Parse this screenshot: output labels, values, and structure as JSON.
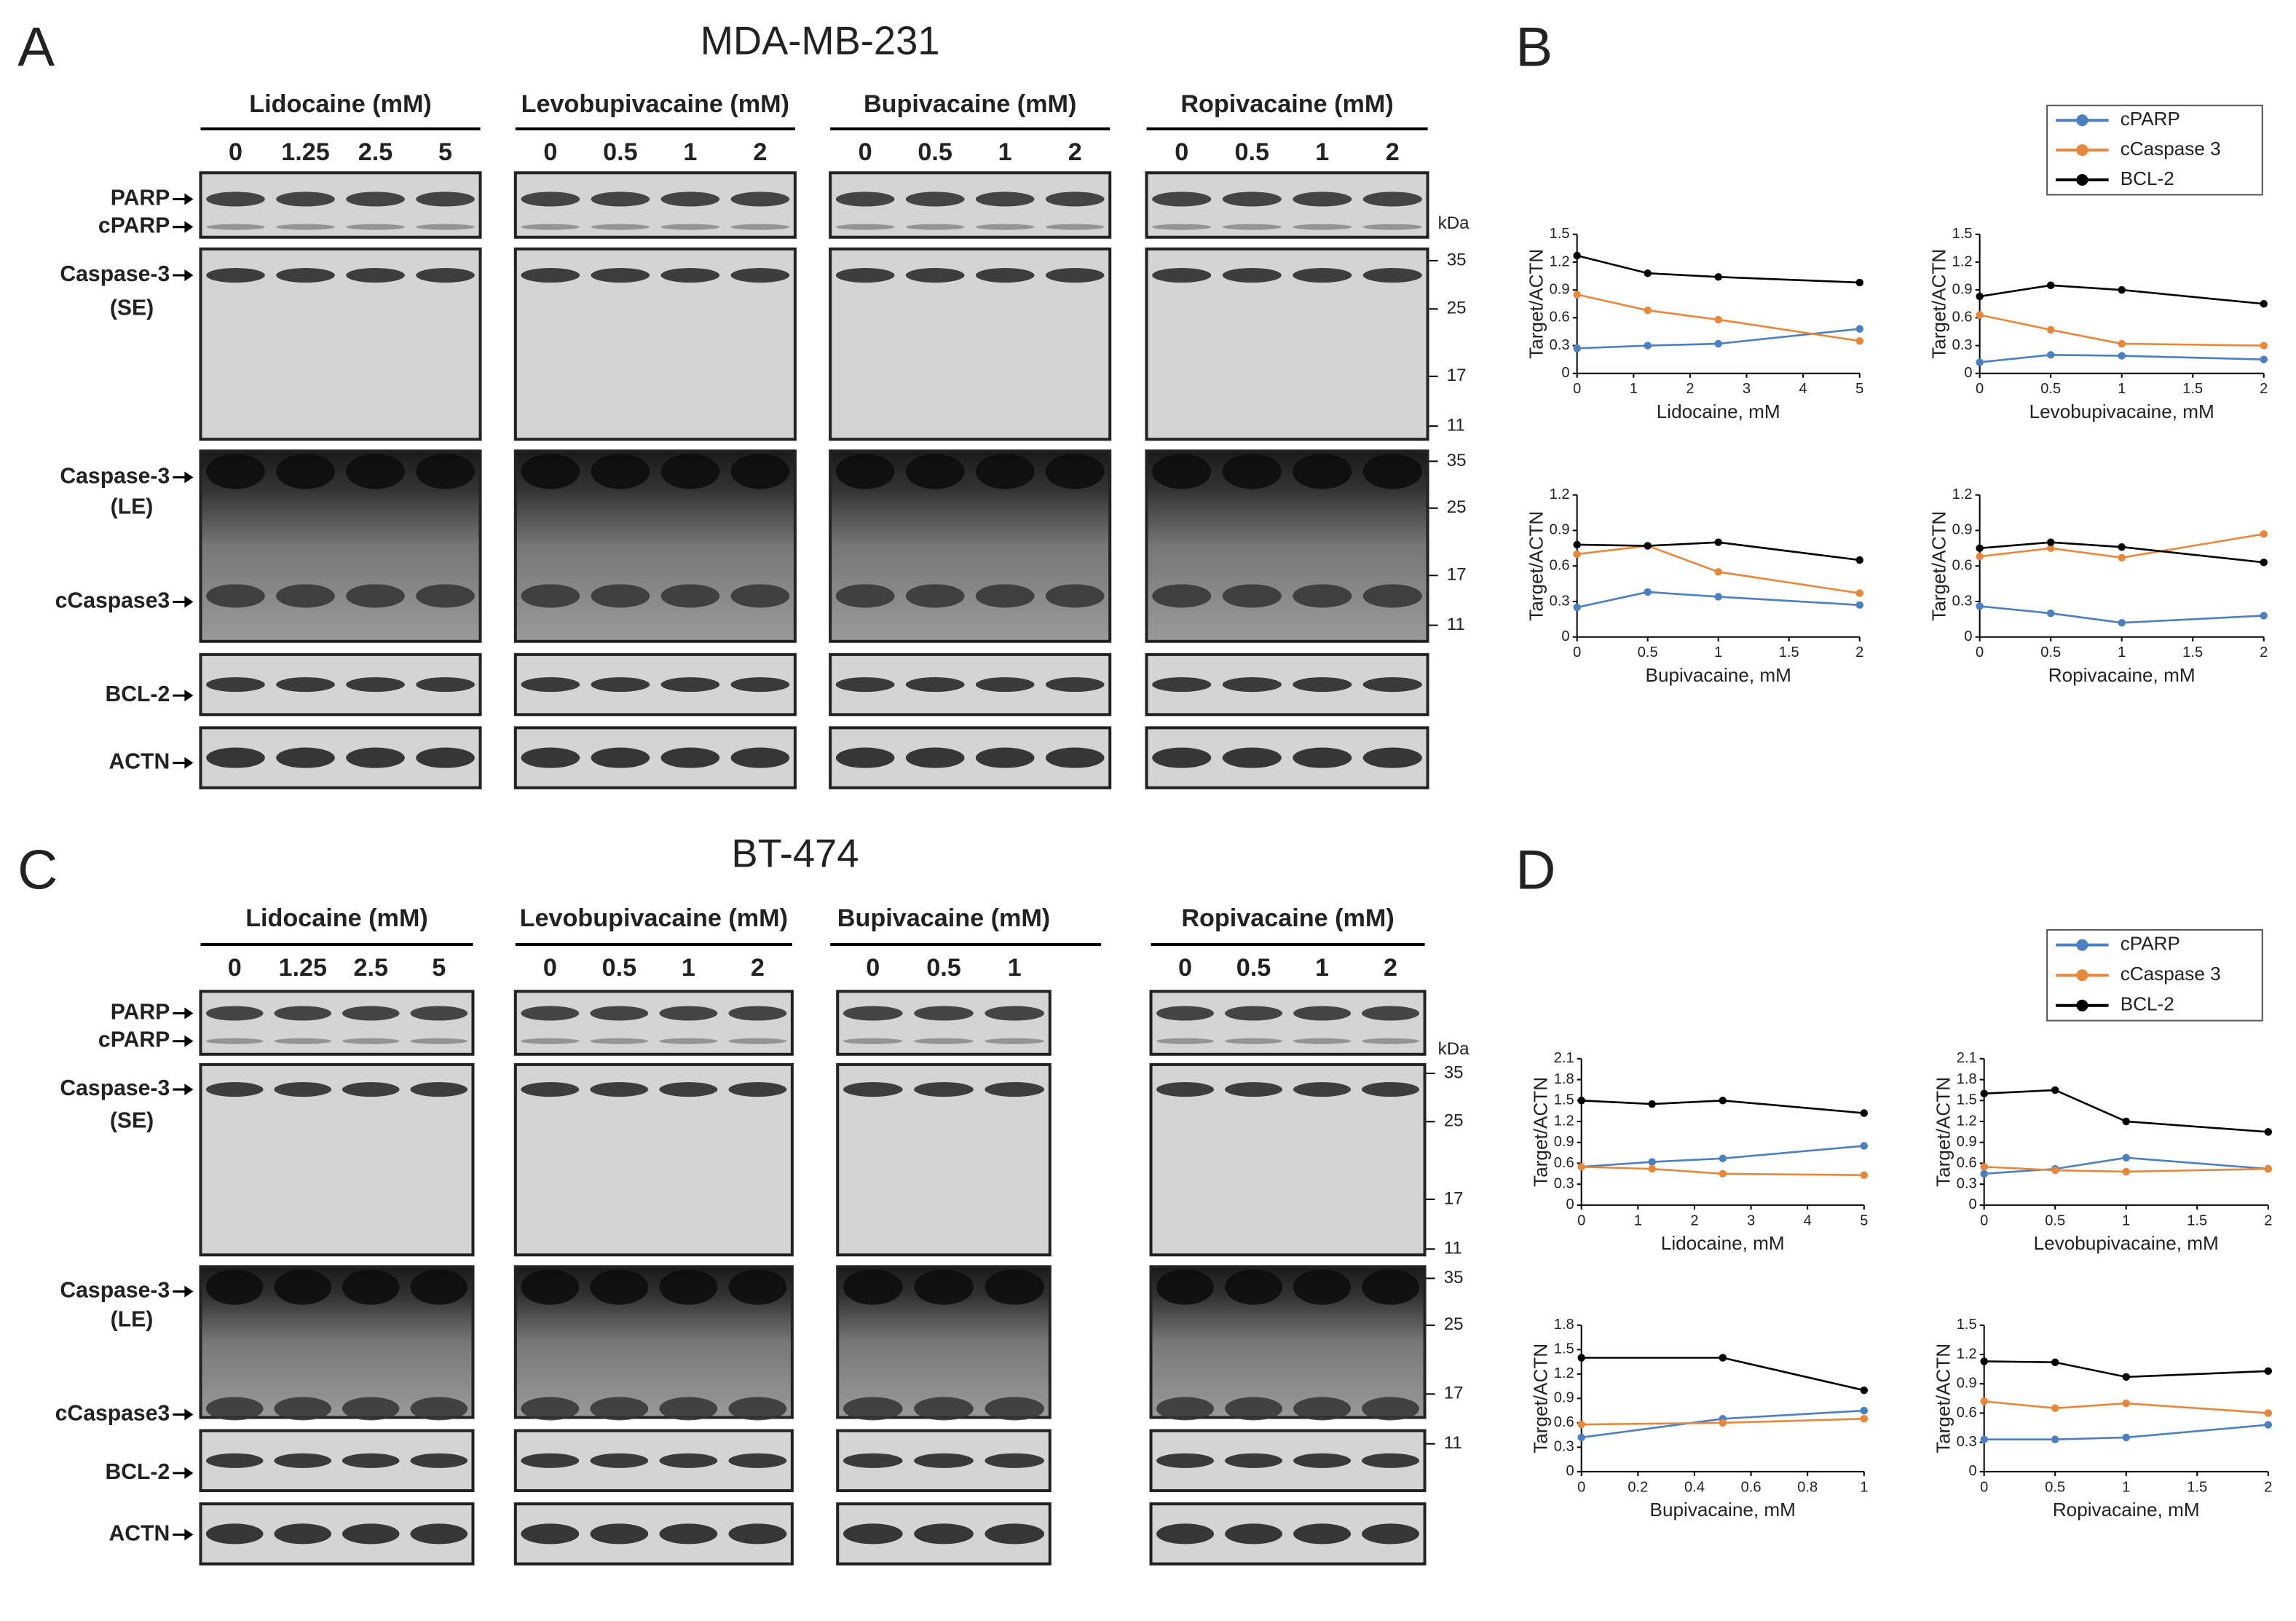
{
  "panels": [
    {
      "letter": "A",
      "title": "MDA-MB-231",
      "groups": [
        {
          "drug": "Lidocaine (mM)",
          "doses": [
            "0",
            "1.25",
            "2.5",
            "5"
          ]
        },
        {
          "drug": "Levobupivacaine (mM)",
          "doses": [
            "0",
            "0.5",
            "1",
            "2"
          ]
        },
        {
          "drug": "Bupivacaine (mM)",
          "doses": [
            "0",
            "0.5",
            "1",
            "2"
          ]
        },
        {
          "drug": "Ropivacaine (mM)",
          "doses": [
            "0",
            "0.5",
            "1",
            "2"
          ]
        }
      ],
      "proteins": [
        "PARP",
        "cPARP",
        "Caspase-3",
        "(SE)",
        "Caspase-3",
        "(LE)",
        "cCaspase3",
        "BCL-2",
        "ACTN"
      ],
      "kda_unit": "kDa",
      "markers_se": [
        "35",
        "25",
        "17",
        "11"
      ],
      "markers_le": [
        "35",
        "25",
        "17",
        "11"
      ]
    },
    {
      "letter": "B"
    },
    {
      "letter": "C",
      "title": "BT-474",
      "groups": [
        {
          "drug": "Lidocaine (mM)",
          "doses": [
            "0",
            "1.25",
            "2.5",
            "5"
          ]
        },
        {
          "drug": "Levobupivacaine (mM)",
          "doses": [
            "0",
            "0.5",
            "1",
            "2"
          ]
        },
        {
          "drug": "Bupivacaine (mM)",
          "doses": [
            "0",
            "0.5",
            "1"
          ]
        },
        {
          "drug": "Ropivacaine (mM)",
          "doses": [
            "0",
            "0.5",
            "1",
            "2"
          ]
        }
      ],
      "proteins": [
        "PARP",
        "cPARP",
        "Caspase-3",
        "(SE)",
        "Caspase-3",
        "(LE)",
        "cCaspase3",
        "BCL-2",
        "ACTN"
      ],
      "kda_unit": "kDa",
      "markers_se": [
        "35",
        "25",
        "17",
        "11"
      ],
      "markers_le": [
        "35",
        "25",
        "17",
        "11"
      ]
    },
    {
      "letter": "D"
    }
  ],
  "chart_data": [
    {
      "type": "line",
      "legend": true,
      "xlabel": "Lidocaine, mM",
      "ylabel": "Target/ACTN",
      "x": [
        0,
        1.25,
        2.5,
        5
      ],
      "xlim": [
        0,
        5
      ],
      "xticks": [
        0,
        1,
        2,
        3,
        4,
        5
      ],
      "ylim": [
        0,
        1.5
      ],
      "yticks": [
        0,
        0.3,
        0.6,
        0.9,
        1.2,
        1.5
      ],
      "series": [
        {
          "name": "cPARP",
          "color": "#4a7fc1",
          "values": [
            0.27,
            0.3,
            0.32,
            0.48
          ]
        },
        {
          "name": "cCaspase 3",
          "color": "#e8873a",
          "values": [
            0.85,
            0.68,
            0.58,
            0.35
          ]
        },
        {
          "name": "BCL-2",
          "color": "#000000",
          "values": [
            1.27,
            1.08,
            1.04,
            0.98
          ]
        }
      ]
    },
    {
      "type": "line",
      "xlabel": "Levobupivacaine, mM",
      "ylabel": "Target/ACTN",
      "x": [
        0,
        0.5,
        1,
        2
      ],
      "xlim": [
        0,
        2
      ],
      "xticks": [
        0,
        0.5,
        1,
        1.5,
        2
      ],
      "ylim": [
        0,
        1.5
      ],
      "yticks": [
        0,
        0.3,
        0.6,
        0.9,
        1.2,
        1.5
      ],
      "series": [
        {
          "color": "#4a7fc1",
          "values": [
            0.12,
            0.2,
            0.19,
            0.15
          ]
        },
        {
          "color": "#e8873a",
          "values": [
            0.63,
            0.47,
            0.32,
            0.3
          ]
        },
        {
          "color": "#000000",
          "values": [
            0.83,
            0.95,
            0.9,
            0.75
          ]
        }
      ]
    },
    {
      "type": "line",
      "xlabel": "Bupivacaine, mM",
      "ylabel": "Target/ACTN",
      "x": [
        0,
        0.5,
        1,
        2
      ],
      "xlim": [
        0,
        2
      ],
      "xticks": [
        0,
        0.5,
        1,
        1.5,
        2
      ],
      "ylim": [
        0,
        1.2
      ],
      "yticks": [
        0,
        0.3,
        0.6,
        0.9,
        1.2
      ],
      "series": [
        {
          "color": "#4a7fc1",
          "values": [
            0.25,
            0.38,
            0.34,
            0.27
          ]
        },
        {
          "color": "#e8873a",
          "values": [
            0.7,
            0.77,
            0.55,
            0.37
          ]
        },
        {
          "color": "#000000",
          "values": [
            0.78,
            0.77,
            0.8,
            0.65
          ]
        }
      ]
    },
    {
      "type": "line",
      "xlabel": "Ropivacaine, mM",
      "ylabel": "Target/ACTN",
      "x": [
        0,
        0.5,
        1,
        2
      ],
      "xlim": [
        0,
        2
      ],
      "xticks": [
        0,
        0.5,
        1,
        1.5,
        2
      ],
      "ylim": [
        0,
        1.2
      ],
      "yticks": [
        0,
        0.3,
        0.6,
        0.9,
        1.2
      ],
      "series": [
        {
          "color": "#4a7fc1",
          "values": [
            0.26,
            0.2,
            0.12,
            0.18
          ]
        },
        {
          "color": "#e8873a",
          "values": [
            0.68,
            0.75,
            0.67,
            0.87
          ]
        },
        {
          "color": "#000000",
          "values": [
            0.75,
            0.8,
            0.76,
            0.63
          ]
        }
      ]
    },
    {
      "type": "line",
      "legend": true,
      "xlabel": "Lidocaine, mM",
      "ylabel": "Target/ACTN",
      "x": [
        0,
        1.25,
        2.5,
        5
      ],
      "xlim": [
        0,
        5
      ],
      "xticks": [
        0,
        1,
        2,
        3,
        4,
        5
      ],
      "ylim": [
        0,
        2.1
      ],
      "yticks": [
        0,
        0.3,
        0.6,
        0.9,
        1.2,
        1.5,
        1.8,
        2.1
      ],
      "series": [
        {
          "name": "cPARP",
          "color": "#4a7fc1",
          "values": [
            0.55,
            0.62,
            0.67,
            0.85
          ]
        },
        {
          "name": "cCaspase 3",
          "color": "#e8873a",
          "values": [
            0.55,
            0.52,
            0.45,
            0.43
          ]
        },
        {
          "name": "BCL-2",
          "color": "#000000",
          "values": [
            1.5,
            1.45,
            1.5,
            1.32
          ]
        }
      ]
    },
    {
      "type": "line",
      "xlabel": "Levobupivacaine, mM",
      "ylabel": "Target/ACTN",
      "x": [
        0,
        0.5,
        1,
        2
      ],
      "xlim": [
        0,
        2
      ],
      "xticks": [
        0,
        0.5,
        1,
        1.5,
        2
      ],
      "ylim": [
        0,
        2.1
      ],
      "yticks": [
        0,
        0.3,
        0.6,
        0.9,
        1.2,
        1.5,
        1.8,
        2.1
      ],
      "series": [
        {
          "color": "#4a7fc1",
          "values": [
            0.45,
            0.52,
            0.68,
            0.52
          ]
        },
        {
          "color": "#e8873a",
          "values": [
            0.55,
            0.5,
            0.48,
            0.52
          ]
        },
        {
          "color": "#000000",
          "values": [
            1.6,
            1.65,
            1.2,
            1.05
          ]
        }
      ]
    },
    {
      "type": "line",
      "xlabel": "Bupivacaine, mM",
      "ylabel": "Target/ACTN",
      "x": [
        0,
        0.5,
        1
      ],
      "xlim": [
        0,
        1
      ],
      "xticks": [
        0,
        0.2,
        0.4,
        0.6,
        0.8,
        1
      ],
      "ylim": [
        0,
        1.8
      ],
      "yticks": [
        0,
        0.3,
        0.6,
        0.9,
        1.2,
        1.5,
        1.8
      ],
      "series": [
        {
          "color": "#4a7fc1",
          "values": [
            0.42,
            0.65,
            0.75
          ]
        },
        {
          "color": "#e8873a",
          "values": [
            0.58,
            0.6,
            0.65
          ]
        },
        {
          "color": "#000000",
          "values": [
            1.4,
            1.4,
            1.0
          ]
        }
      ]
    },
    {
      "type": "line",
      "xlabel": "Ropivacaine, mM",
      "ylabel": "Target/ACTN",
      "x": [
        0,
        0.5,
        1,
        2
      ],
      "xlim": [
        0,
        2
      ],
      "xticks": [
        0,
        0.5,
        1,
        1.5,
        2
      ],
      "ylim": [
        0,
        1.5
      ],
      "yticks": [
        0,
        0.3,
        0.6,
        0.9,
        1.2,
        1.5
      ],
      "series": [
        {
          "color": "#4a7fc1",
          "values": [
            0.33,
            0.33,
            0.35,
            0.48
          ]
        },
        {
          "color": "#e8873a",
          "values": [
            0.72,
            0.65,
            0.7,
            0.6
          ]
        },
        {
          "color": "#000000",
          "values": [
            1.13,
            1.12,
            0.97,
            1.03
          ]
        }
      ]
    }
  ]
}
